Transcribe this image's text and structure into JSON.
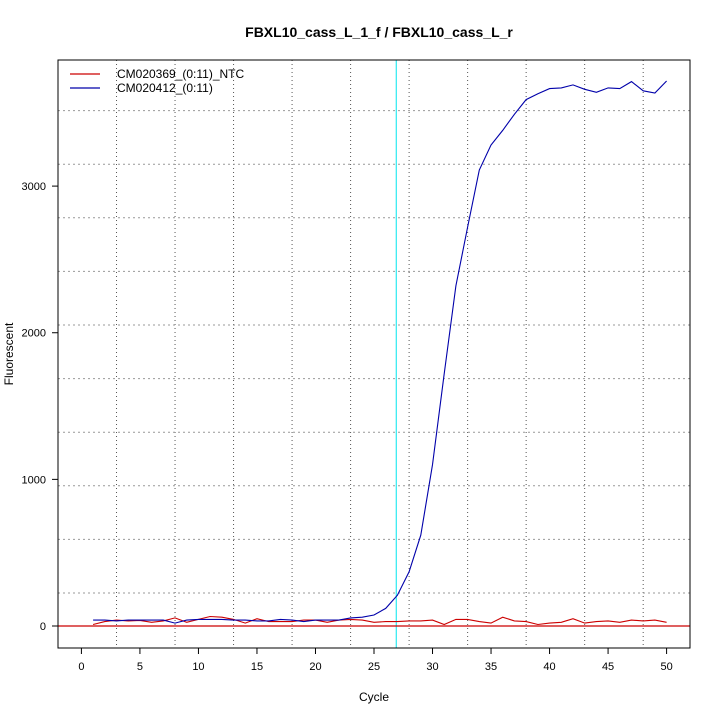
{
  "chart_data": {
    "type": "line",
    "title": "FBXL10_cass_L_1_f / FBXL10_cass_L_r",
    "xlabel": "Cycle",
    "ylabel": "Fluorescent",
    "xlim": [
      -2,
      52
    ],
    "ylim": [
      -150,
      3860
    ],
    "xticks": [
      0,
      5,
      10,
      15,
      20,
      25,
      30,
      35,
      40,
      45,
      50
    ],
    "yticks": [
      0,
      1000,
      2000,
      3000
    ],
    "grid": true,
    "legend_position": "top-left",
    "threshold_cycle": 26.9,
    "threshold_color": "#00e5ee",
    "baseline_value": 0,
    "baseline_color": "#cc0000",
    "x": [
      1,
      2,
      3,
      4,
      5,
      6,
      7,
      8,
      9,
      10,
      11,
      12,
      13,
      14,
      15,
      16,
      17,
      18,
      19,
      20,
      21,
      22,
      23,
      24,
      25,
      26,
      27,
      28,
      29,
      30,
      31,
      32,
      33,
      34,
      35,
      36,
      37,
      38,
      39,
      40,
      41,
      42,
      43,
      44,
      45,
      46,
      47,
      48,
      49,
      50
    ],
    "series": [
      {
        "name": "CM020369_(0:11)_NTC",
        "color": "#cc0000",
        "values": [
          10,
          30,
          40,
          35,
          38,
          25,
          35,
          55,
          25,
          45,
          65,
          60,
          45,
          20,
          50,
          30,
          30,
          30,
          40,
          40,
          25,
          40,
          45,
          40,
          25,
          30,
          30,
          35,
          35,
          40,
          10,
          45,
          45,
          30,
          20,
          60,
          35,
          30,
          10,
          20,
          25,
          50,
          20,
          30,
          35,
          25,
          40,
          35,
          40,
          25
        ]
      },
      {
        "name": "CM020412_(0:11)",
        "color": "#0000aa",
        "values": [
          40,
          40,
          35,
          40,
          40,
          40,
          40,
          20,
          40,
          45,
          45,
          45,
          40,
          40,
          35,
          35,
          45,
          40,
          30,
          40,
          40,
          40,
          55,
          60,
          75,
          120,
          210,
          370,
          620,
          1100,
          1720,
          2320,
          2720,
          3110,
          3280,
          3380,
          3490,
          3590,
          3630,
          3665,
          3670,
          3690,
          3660,
          3640,
          3670,
          3665,
          3713,
          3650,
          3635,
          3717
        ]
      }
    ]
  }
}
